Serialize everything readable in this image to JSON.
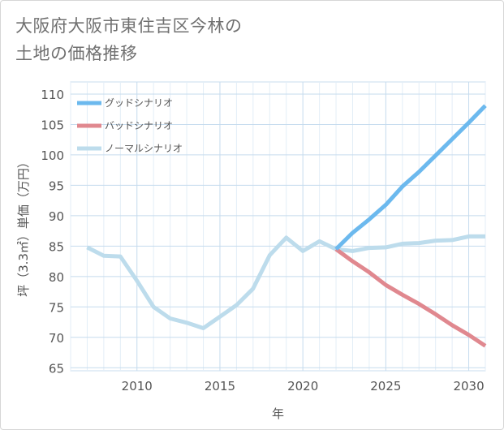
{
  "chart_data": {
    "type": "line",
    "title": "大阪府大阪市東住吉区今林の土地の価格推移",
    "title_lines": [
      "大阪府大阪市東住吉区今林の",
      "土地の価格推移"
    ],
    "xlabel": "年",
    "ylabel": "坪（3.3㎡）単価（万円）",
    "xlim": [
      2006,
      2031
    ],
    "ylim": [
      64.5,
      112
    ],
    "x_ticks": [
      2010,
      2015,
      2020,
      2025,
      2030
    ],
    "y_ticks": [
      65,
      70,
      75,
      80,
      85,
      90,
      95,
      100,
      105,
      110
    ],
    "grid": true,
    "legend_position": "top-left",
    "series": [
      {
        "name": "グッドシナリオ",
        "color": "#6cb9ee",
        "x": [
          2022,
          2023,
          2024,
          2025,
          2026,
          2027,
          2028,
          2029,
          2030,
          2031
        ],
        "values": [
          84.5,
          87.2,
          89.4,
          91.8,
          94.8,
          97.2,
          99.9,
          102.6,
          105.3,
          108.1
        ]
      },
      {
        "name": "バッドシナリオ",
        "color": "#e0888f",
        "x": [
          2022,
          2023,
          2024,
          2025,
          2026,
          2027,
          2028,
          2029,
          2030,
          2031
        ],
        "values": [
          84.5,
          82.5,
          80.7,
          78.6,
          77.0,
          75.5,
          73.8,
          72.0,
          70.4,
          68.6
        ]
      },
      {
        "name": "ノーマルシナリオ",
        "color": "#bddcec",
        "x": [
          2007,
          2008,
          2009,
          2010,
          2011,
          2012,
          2013,
          2014,
          2015,
          2016,
          2017,
          2018,
          2019,
          2020,
          2021,
          2022,
          2023,
          2024,
          2025,
          2026,
          2027,
          2028,
          2029,
          2030,
          2031
        ],
        "values": [
          84.8,
          83.4,
          83.3,
          79.3,
          75.0,
          73.1,
          72.4,
          71.5,
          73.4,
          75.3,
          78.0,
          83.5,
          86.4,
          84.2,
          85.8,
          84.5,
          84.2,
          84.7,
          84.8,
          85.4,
          85.5,
          85.9,
          86.0,
          86.6,
          86.6
        ]
      }
    ]
  }
}
